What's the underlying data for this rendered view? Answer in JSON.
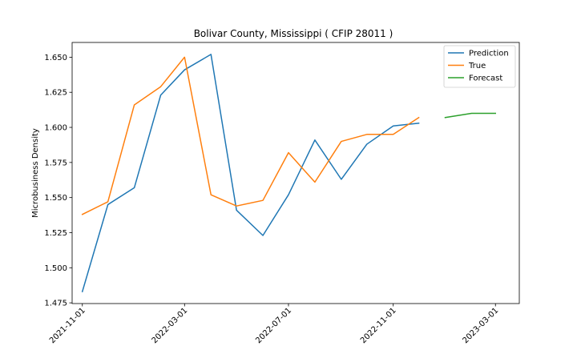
{
  "chart_data": {
    "type": "line",
    "title": "Bolivar County, Mississippi ( CFIP 28011 )",
    "xlabel": "",
    "ylabel": "Microbusiness Density",
    "x_range": [
      "2021-10-20",
      "2023-03-29"
    ],
    "ylim": [
      1.4745,
      1.6605
    ],
    "x_ticks": [
      "2021-11-01",
      "2022-03-01",
      "2022-07-01",
      "2022-11-01",
      "2023-03-01"
    ],
    "y_ticks": [
      1.475,
      1.5,
      1.525,
      1.55,
      1.575,
      1.6,
      1.625,
      1.65
    ],
    "y_tick_labels": [
      "1.475",
      "1.500",
      "1.525",
      "1.550",
      "1.575",
      "1.600",
      "1.625",
      "1.650"
    ],
    "grid": false,
    "legend_position": "top-right",
    "series": [
      {
        "name": "Prediction",
        "color": "#1f77b4",
        "x": [
          "2021-11-01",
          "2021-12-01",
          "2022-01-01",
          "2022-02-01",
          "2022-03-01",
          "2022-04-01",
          "2022-05-01",
          "2022-06-01",
          "2022-07-01",
          "2022-08-01",
          "2022-09-01",
          "2022-10-01",
          "2022-11-01",
          "2022-12-01"
        ],
        "y": [
          1.483,
          1.545,
          1.557,
          1.623,
          1.641,
          1.652,
          1.541,
          1.523,
          1.552,
          1.591,
          1.563,
          1.588,
          1.601,
          1.603
        ]
      },
      {
        "name": "True",
        "color": "#ff7f0e",
        "x": [
          "2021-11-01",
          "2021-12-01",
          "2022-01-01",
          "2022-02-01",
          "2022-03-01",
          "2022-04-01",
          "2022-05-01",
          "2022-06-01",
          "2022-07-01",
          "2022-08-01",
          "2022-09-01",
          "2022-10-01",
          "2022-11-01",
          "2022-12-01"
        ],
        "y": [
          1.538,
          1.547,
          1.616,
          1.629,
          1.65,
          1.552,
          1.544,
          1.548,
          1.582,
          1.561,
          1.59,
          1.595,
          1.595,
          1.607
        ]
      },
      {
        "name": "Forecast",
        "color": "#2ca02c",
        "x": [
          "2023-01-01",
          "2023-02-01",
          "2023-03-01"
        ],
        "y": [
          1.607,
          1.61,
          1.61
        ]
      }
    ]
  }
}
